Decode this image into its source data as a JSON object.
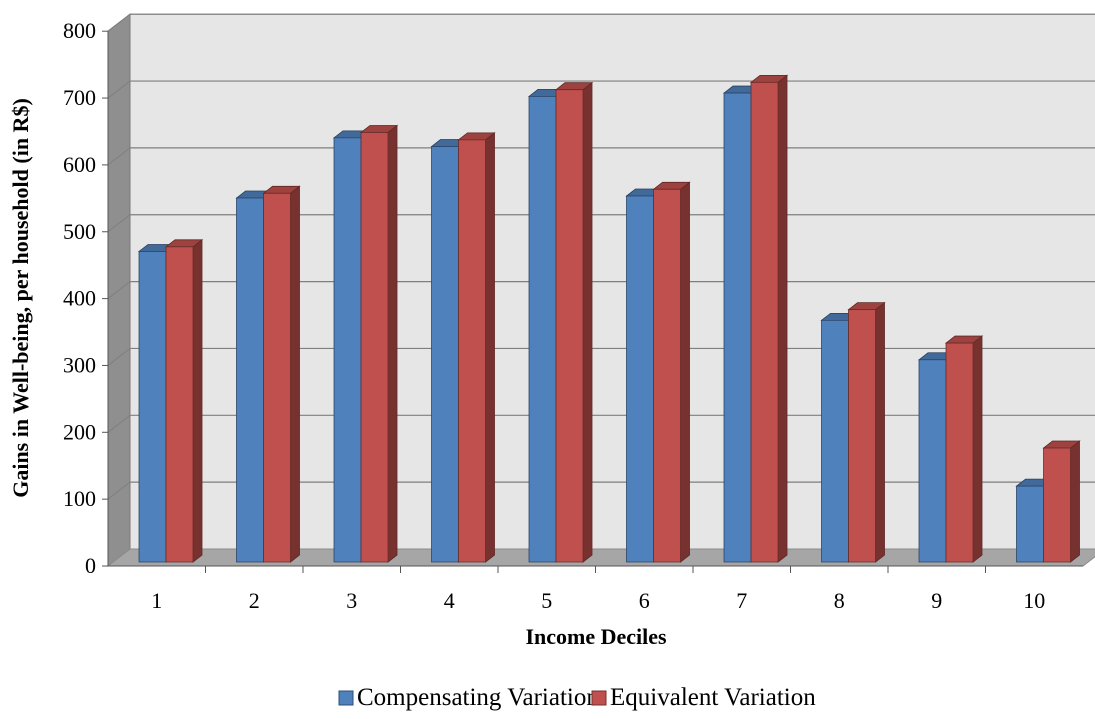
{
  "chart_data": {
    "type": "bar",
    "title": "",
    "xlabel": "Income Deciles",
    "ylabel": "Gains in Well-being, per household (in R$)",
    "categories": [
      "1",
      "2",
      "3",
      "4",
      "5",
      "6",
      "7",
      "8",
      "9",
      "10"
    ],
    "series": [
      {
        "name": "Compensating Variation",
        "color": "#4F81BD",
        "values": [
          463,
          543,
          633,
          620,
          695,
          546,
          700,
          360,
          301,
          112
        ]
      },
      {
        "name": "Equivalent Variation",
        "color": "#C0504D",
        "values": [
          470,
          550,
          641,
          630,
          705,
          556,
          716,
          376,
          326,
          169
        ]
      }
    ],
    "yticks": [
      "0",
      "100",
      "200",
      "300",
      "400",
      "500",
      "600",
      "700",
      "800"
    ],
    "ylim": [
      0,
      800
    ],
    "grid": true,
    "legend_position": "bottom",
    "style": "3d-clustered-column"
  }
}
